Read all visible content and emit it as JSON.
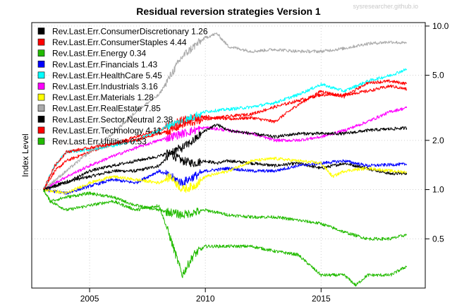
{
  "chart_data": {
    "type": "line",
    "title": "Residual reversion strategies Version 1",
    "watermark": "sysresearcher.github.io",
    "ylabel": "Index Level",
    "xlabel": "",
    "y_scale": "log",
    "xlim": [
      2002.5,
      2019.5
    ],
    "ylim": [
      0.25,
      10.5
    ],
    "x_ticks": [
      2005,
      2010,
      2015
    ],
    "y_ticks": [
      0.5,
      1.0,
      2.0,
      5.0,
      10.0
    ],
    "y_tick_labels": [
      "0.5",
      "1.0",
      "2.0",
      "5.0",
      "10.0"
    ],
    "grid": true,
    "legend_position": "top-left",
    "series": [
      {
        "name": "Rev.Last.Err.ConsumerDiscretionary 1.26",
        "color": "#000000",
        "x": [
          2003,
          2004,
          2005,
          2006,
          2007,
          2008,
          2008.5,
          2009,
          2009.5,
          2010,
          2010.5,
          2011,
          2012,
          2013,
          2014,
          2015,
          2016,
          2017,
          2018,
          2018.7
        ],
        "y": [
          1.0,
          1.12,
          1.2,
          1.3,
          1.3,
          1.4,
          1.65,
          1.5,
          1.45,
          1.5,
          1.45,
          1.5,
          1.45,
          1.4,
          1.45,
          1.35,
          1.45,
          1.35,
          1.25,
          1.26
        ]
      },
      {
        "name": "Rev.Last.Err.ConsumerStaples 4.44",
        "color": "#ff0000",
        "x": [
          2003,
          2003.5,
          2004,
          2005,
          2006,
          2007,
          2008,
          2008.5,
          2009,
          2009.5,
          2010,
          2011,
          2012,
          2013,
          2014,
          2015,
          2016,
          2017,
          2018,
          2018.7
        ],
        "y": [
          1.0,
          1.3,
          1.5,
          1.7,
          1.9,
          2.1,
          2.3,
          2.5,
          2.65,
          2.75,
          2.8,
          2.7,
          2.75,
          2.6,
          3.3,
          4.0,
          3.7,
          4.5,
          4.6,
          4.44
        ]
      },
      {
        "name": "Rev.Last.Err.Energy 0.34",
        "color": "#22bb00",
        "x": [
          2003,
          2003.3,
          2004,
          2005,
          2006,
          2007,
          2008,
          2008.5,
          2009,
          2009.5,
          2010,
          2011,
          2012,
          2013,
          2014,
          2015,
          2016,
          2016.5,
          2017,
          2018,
          2018.7
        ],
        "y": [
          1.0,
          0.85,
          0.75,
          0.8,
          0.85,
          0.75,
          0.8,
          0.5,
          0.3,
          0.4,
          0.45,
          0.45,
          0.45,
          0.42,
          0.4,
          0.3,
          0.3,
          0.26,
          0.3,
          0.3,
          0.34
        ]
      },
      {
        "name": "Rev.Last.Err.Financials 1.43",
        "color": "#0000ff",
        "x": [
          2003,
          2004,
          2005,
          2006,
          2007,
          2008,
          2008.5,
          2009,
          2009.5,
          2010,
          2011,
          2012,
          2013,
          2014,
          2015,
          2016,
          2017,
          2018,
          2018.7
        ],
        "y": [
          1.0,
          0.95,
          1.05,
          1.15,
          1.1,
          1.3,
          1.2,
          1.1,
          1.2,
          1.3,
          1.35,
          1.3,
          1.3,
          1.4,
          1.45,
          1.5,
          1.4,
          1.42,
          1.43
        ]
      },
      {
        "name": "Rev.Last.Err.HealthCare 5.45",
        "color": "#00ffff",
        "x": [
          2003,
          2003.5,
          2004,
          2005,
          2006,
          2007,
          2008,
          2008.5,
          2009,
          2009.5,
          2010,
          2011,
          2012,
          2013,
          2014,
          2015,
          2016,
          2017,
          2018,
          2018.7
        ],
        "y": [
          1.0,
          1.4,
          1.7,
          1.75,
          1.85,
          2.0,
          2.3,
          2.5,
          2.6,
          2.8,
          3.0,
          3.1,
          3.2,
          3.4,
          3.8,
          4.4,
          4.0,
          4.6,
          5.0,
          5.45
        ]
      },
      {
        "name": "Rev.Last.Err.Industrials 3.16",
        "color": "#ff00ff",
        "x": [
          2003,
          2004,
          2005,
          2006,
          2007,
          2008,
          2009,
          2010,
          2011,
          2012,
          2013,
          2014,
          2015,
          2016,
          2017,
          2018,
          2018.7
        ],
        "y": [
          1.0,
          1.2,
          1.4,
          1.6,
          1.8,
          2.0,
          2.2,
          2.4,
          2.3,
          2.2,
          2.0,
          2.0,
          2.1,
          2.3,
          2.6,
          3.0,
          3.16
        ]
      },
      {
        "name": "Rev.Last.Err.Materials 1.28",
        "color": "#ffff00",
        "x": [
          2003,
          2004,
          2005,
          2006,
          2007,
          2008,
          2008.5,
          2009,
          2009.5,
          2010,
          2011,
          2012,
          2013,
          2014,
          2015,
          2015.5,
          2016,
          2017,
          2018,
          2018.7
        ],
        "y": [
          1.0,
          0.95,
          1.1,
          1.2,
          1.15,
          1.1,
          1.2,
          1.0,
          1.05,
          1.2,
          1.3,
          1.5,
          1.55,
          1.5,
          1.45,
          1.2,
          1.3,
          1.35,
          1.3,
          1.28
        ]
      },
      {
        "name": "Rev.Last.Err.RealEstate 7.85",
        "color": "#aaaaaa",
        "x": [
          2003,
          2004,
          2005,
          2006,
          2007,
          2008,
          2008.5,
          2009,
          2009.5,
          2010,
          2010.5,
          2011,
          2012,
          2013,
          2014,
          2015,
          2016,
          2017,
          2018,
          2018.7
        ],
        "y": [
          1.0,
          1.3,
          1.7,
          2.2,
          3.0,
          3.8,
          5.0,
          6.5,
          7.5,
          8.5,
          9.0,
          7.5,
          7.0,
          7.2,
          7.0,
          7.0,
          7.3,
          7.8,
          8.0,
          7.85
        ]
      },
      {
        "name": "Rev.Last.Err.Sector.Neutral 2.38",
        "color": "#000000",
        "x": [
          2003,
          2004,
          2005,
          2006,
          2007,
          2008,
          2009,
          2009.5,
          2010,
          2010.5,
          2011,
          2012,
          2013,
          2014,
          2015,
          2016,
          2017,
          2018,
          2018.7
        ],
        "y": [
          1.0,
          1.1,
          1.3,
          1.4,
          1.5,
          1.6,
          1.8,
          2.0,
          2.3,
          2.5,
          2.3,
          2.2,
          2.1,
          2.2,
          2.2,
          2.2,
          2.3,
          2.35,
          2.38
        ]
      },
      {
        "name": "Rev.Last.Err.Technology 4.11",
        "color": "#ff0000",
        "x": [
          2003,
          2003.5,
          2004,
          2005,
          2006,
          2007,
          2008,
          2008.5,
          2009,
          2009.5,
          2010,
          2011,
          2012,
          2013,
          2014,
          2015,
          2016,
          2017,
          2018,
          2018.7
        ],
        "y": [
          1.0,
          1.4,
          1.7,
          1.8,
          1.9,
          2.0,
          2.2,
          2.3,
          2.5,
          2.6,
          2.7,
          2.8,
          2.9,
          3.2,
          3.5,
          3.8,
          3.8,
          4.0,
          4.3,
          4.11
        ]
      },
      {
        "name": "Rev.Last.Err.Utilities 0.53",
        "color": "#22bb00",
        "x": [
          2003,
          2003.3,
          2004,
          2005,
          2006,
          2007,
          2008,
          2009,
          2010,
          2011,
          2012,
          2013,
          2014,
          2015,
          2016,
          2017,
          2018,
          2018.7
        ],
        "y": [
          1.0,
          0.85,
          0.9,
          0.95,
          0.9,
          0.8,
          0.75,
          0.7,
          0.75,
          0.7,
          0.68,
          0.68,
          0.65,
          0.62,
          0.55,
          0.5,
          0.5,
          0.53
        ]
      }
    ]
  }
}
